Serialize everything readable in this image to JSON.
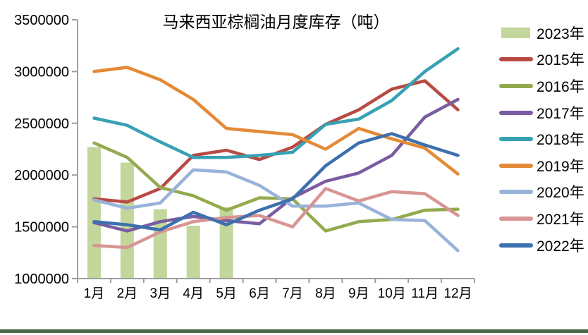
{
  "chart_data": {
    "type": "combo-bar-line",
    "title": "马来西亚棕榈油月度库存（吨）",
    "categories": [
      "1月",
      "2月",
      "3月",
      "4月",
      "5月",
      "6月",
      "7月",
      "8月",
      "9月",
      "10月",
      "11月",
      "12月"
    ],
    "ylim": [
      1000000,
      3500000
    ],
    "y_tick_step": 500000,
    "y_tick_labels": [
      "3500000",
      "3000000",
      "2500000",
      "2000000",
      "1500000",
      "1000000"
    ],
    "grid": false,
    "legend_position": "right",
    "axis_color": "#9e9e9e",
    "text_color": "#000000",
    "bar_series": [
      {
        "name": "2023年",
        "color": "#c3d69b",
        "values": [
          2270000,
          2120000,
          1670000,
          1510000,
          1690000
        ]
      }
    ],
    "line_series": [
      {
        "name": "2015年",
        "color": "#b84a44",
        "values": [
          1770000,
          1740000,
          1870000,
          2190000,
          2240000,
          2150000,
          2270000,
          2490000,
          2630000,
          2830000,
          2910000,
          2630000
        ]
      },
      {
        "name": "2016年",
        "color": "#93aa4e",
        "values": [
          2310000,
          2170000,
          1880000,
          1800000,
          1660000,
          1780000,
          1770000,
          1460000,
          1550000,
          1570000,
          1660000,
          1670000
        ]
      },
      {
        "name": "2017年",
        "color": "#7a5ca1",
        "values": [
          1540000,
          1460000,
          1550000,
          1600000,
          1560000,
          1530000,
          1780000,
          1940000,
          2020000,
          2190000,
          2560000,
          2730000
        ]
      },
      {
        "name": "2018年",
        "color": "#37a1b3",
        "values": [
          2550000,
          2480000,
          2320000,
          2170000,
          2170000,
          2190000,
          2220000,
          2490000,
          2540000,
          2720000,
          3000000,
          3220000
        ]
      },
      {
        "name": "2019年",
        "color": "#e48a36",
        "values": [
          3000000,
          3040000,
          2920000,
          2730000,
          2450000,
          2420000,
          2390000,
          2250000,
          2450000,
          2350000,
          2260000,
          2010000
        ]
      },
      {
        "name": "2020年",
        "color": "#98b3d9",
        "values": [
          1760000,
          1680000,
          1730000,
          2050000,
          2030000,
          1900000,
          1700000,
          1700000,
          1730000,
          1570000,
          1560000,
          1270000
        ]
      },
      {
        "name": "2021年",
        "color": "#d79593",
        "values": [
          1320000,
          1300000,
          1450000,
          1550000,
          1590000,
          1610000,
          1500000,
          1870000,
          1750000,
          1840000,
          1820000,
          1610000
        ]
      },
      {
        "name": "2022年",
        "color": "#3c70ae",
        "values": [
          1550000,
          1520000,
          1470000,
          1640000,
          1520000,
          1660000,
          1770000,
          2090000,
          2310000,
          2400000,
          2290000,
          2190000
        ]
      }
    ],
    "legend": [
      {
        "label": "2023年",
        "color": "#c3d69b",
        "swatch": "bar"
      },
      {
        "label": "2015年",
        "color": "#b84a44",
        "swatch": "line"
      },
      {
        "label": "2016年",
        "color": "#93aa4e",
        "swatch": "line"
      },
      {
        "label": "2017年",
        "color": "#7a5ca1",
        "swatch": "line"
      },
      {
        "label": "2018年",
        "color": "#37a1b3",
        "swatch": "line"
      },
      {
        "label": "2019年",
        "color": "#e48a36",
        "swatch": "line"
      },
      {
        "label": "2020年",
        "color": "#98b3d9",
        "swatch": "line"
      },
      {
        "label": "2021年",
        "color": "#d79593",
        "swatch": "line"
      },
      {
        "label": "2022年",
        "color": "#3c70ae",
        "swatch": "line"
      }
    ]
  },
  "footer": {
    "strip_color": "#4a684a"
  }
}
